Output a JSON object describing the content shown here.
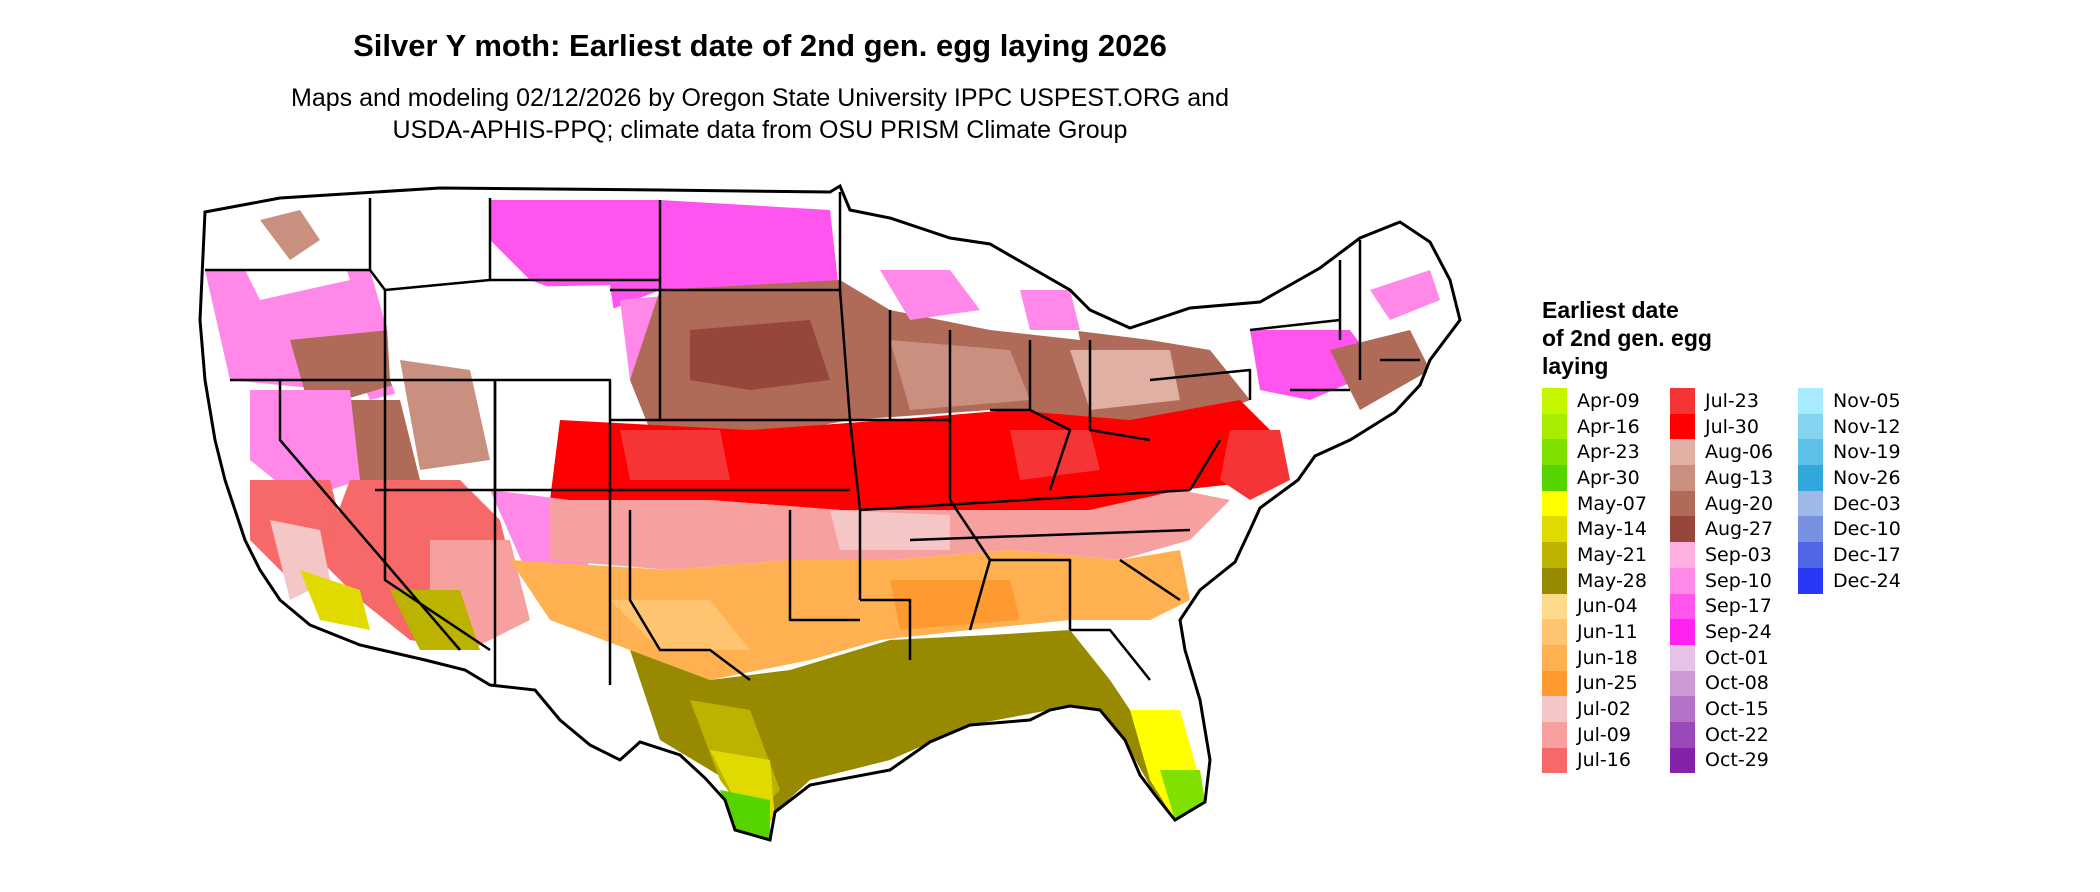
{
  "title": "Silver Y moth: Earliest date of 2nd gen. egg laying 2026",
  "subtitle_line1": "Maps and modeling 02/12/2026 by Oregon State University IPPC USPEST.ORG and",
  "subtitle_line2": "USDA-APHIS-PPQ; climate data from OSU PRISM Climate Group",
  "legend": {
    "title_lines": [
      "Earliest date",
      "of 2nd gen. egg",
      "laying"
    ],
    "columns": [
      [
        {
          "label": "Apr-09",
          "color": "#c6f500"
        },
        {
          "label": "Apr-16",
          "color": "#a8ec00"
        },
        {
          "label": "Apr-23",
          "color": "#80e000"
        },
        {
          "label": "Apr-30",
          "color": "#55d400"
        },
        {
          "label": "May-07",
          "color": "#ffff00"
        },
        {
          "label": "May-14",
          "color": "#e0da00"
        },
        {
          "label": "May-21",
          "color": "#bcb300"
        },
        {
          "label": "May-28",
          "color": "#978a00"
        },
        {
          "label": "Jun-04",
          "color": "#ffd98c"
        },
        {
          "label": "Jun-11",
          "color": "#ffc470"
        },
        {
          "label": "Jun-18",
          "color": "#ffb050"
        },
        {
          "label": "Jun-25",
          "color": "#ff9a30"
        },
        {
          "label": "Jul-02",
          "color": "#f5c6c6"
        },
        {
          "label": "Jul-09",
          "color": "#f7a0a0"
        },
        {
          "label": "Jul-16",
          "color": "#f76868"
        }
      ],
      [
        {
          "label": "Jul-23",
          "color": "#f53535"
        },
        {
          "label": "Jul-30",
          "color": "#ff0000"
        },
        {
          "label": "Aug-06",
          "color": "#e0b0a4"
        },
        {
          "label": "Aug-13",
          "color": "#c99080"
        },
        {
          "label": "Aug-20",
          "color": "#b06a58"
        },
        {
          "label": "Aug-27",
          "color": "#96463a"
        },
        {
          "label": "Sep-03",
          "color": "#ffb0e0"
        },
        {
          "label": "Sep-10",
          "color": "#ff88e8"
        },
        {
          "label": "Sep-17",
          "color": "#ff55ee"
        },
        {
          "label": "Sep-24",
          "color": "#ff22f0"
        },
        {
          "label": "Oct-01",
          "color": "#e6c2e6"
        },
        {
          "label": "Oct-08",
          "color": "#cc99d6"
        },
        {
          "label": "Oct-15",
          "color": "#b273c7"
        },
        {
          "label": "Oct-22",
          "color": "#9a4ab8"
        },
        {
          "label": "Oct-29",
          "color": "#8622a8"
        }
      ],
      [
        {
          "label": "Nov-05",
          "color": "#a8eaff"
        },
        {
          "label": "Nov-12",
          "color": "#84d4f0"
        },
        {
          "label": "Nov-19",
          "color": "#5cc0e8"
        },
        {
          "label": "Nov-26",
          "color": "#30a8dc"
        },
        {
          "label": "Dec-03",
          "color": "#a0b8e8"
        },
        {
          "label": "Dec-10",
          "color": "#7890e0"
        },
        {
          "label": "Dec-17",
          "color": "#5066e8"
        },
        {
          "label": "Dec-24",
          "color": "#2838f5"
        }
      ]
    ]
  }
}
